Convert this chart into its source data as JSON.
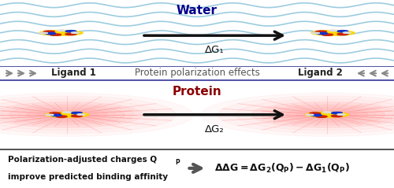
{
  "fig_width": 5.0,
  "fig_height": 2.39,
  "dpi": 100,
  "top_panel_bg": "#cce8f4",
  "mid_panel_bg": "#d0d0d0",
  "bot_panel_bg": "#f5e8d8",
  "footer_bg": "#ffffff",
  "water_label": "Water",
  "water_color": "#00008B",
  "dg1_label": "ΔG₁",
  "protein_label": "Protein",
  "protein_color": "#8B0000",
  "dg2_label": "ΔG₂",
  "mid_left_label": "Ligand 1",
  "mid_center_label": "Protein polarization effects",
  "mid_right_label": "Ligand 2",
  "mid_label_color": "#222222",
  "border_color": "#5555aa",
  "arrow_color": "#111111",
  "arrow_lw": 2.5,
  "chevron_color": "#888888",
  "mol_yellow": "#FFD700",
  "mol_red": "#CC2200",
  "mol_blue": "#1133CC",
  "mol_white": "#DDDDDD",
  "wave_color": "#7bbcd5",
  "wave_lw": 1.2,
  "protein_glow_color": "#ff8888"
}
